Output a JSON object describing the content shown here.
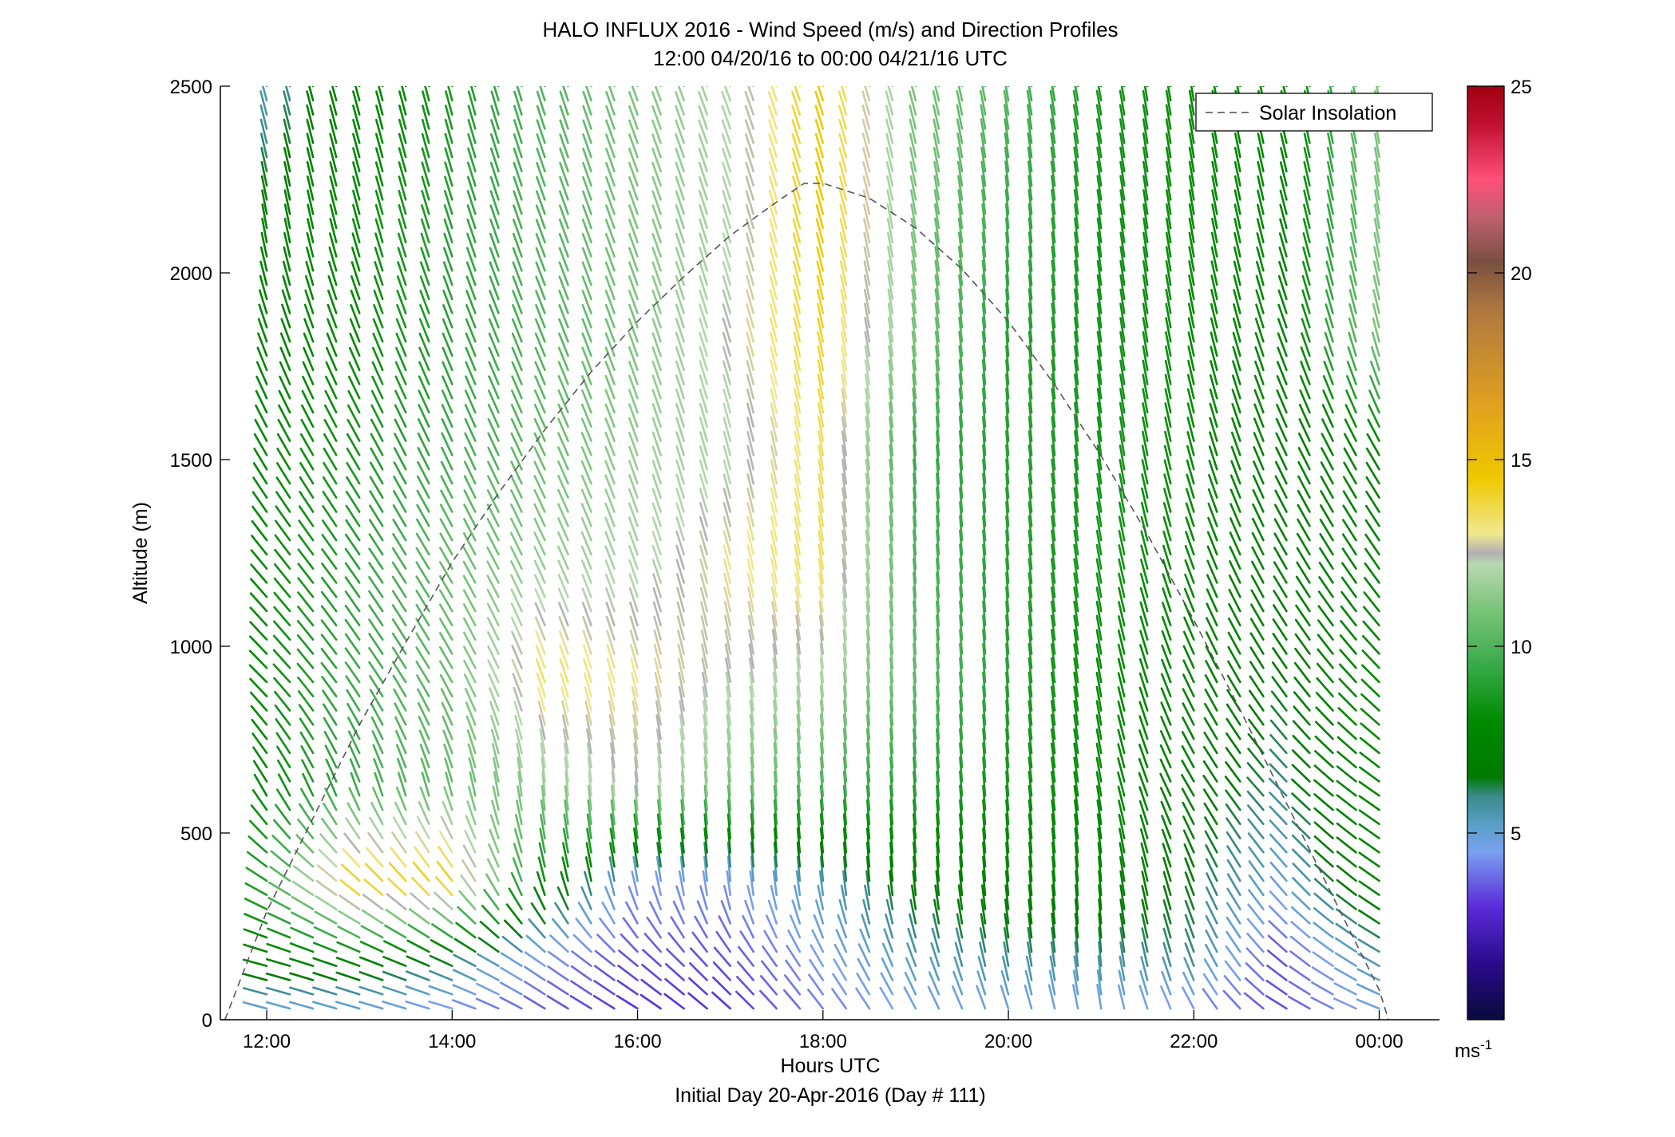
{
  "chart_data": {
    "type": "wind-barb-profile",
    "title": "HALO INFLUX 2016 - Wind Speed (m/s) and Direction Profiles",
    "subtitle": "12:00 04/20/16 to 00:00 04/21/16  UTC",
    "xlabel": "Hours UTC",
    "xlabel2": "Initial Day 20-Apr-2016 (Day # 111)",
    "ylabel": "Altitude (m)",
    "x_unit": "hours UTC since 00:00 04/20/16",
    "xlim": [
      11.5,
      24.65
    ],
    "ylim": [
      0,
      2500
    ],
    "x_ticks": [
      {
        "value": 12,
        "label": "12:00"
      },
      {
        "value": 14,
        "label": "14:00"
      },
      {
        "value": 16,
        "label": "16:00"
      },
      {
        "value": 18,
        "label": "18:00"
      },
      {
        "value": 20,
        "label": "20:00"
      },
      {
        "value": 22,
        "label": "22:00"
      },
      {
        "value": 24,
        "label": "00:00"
      }
    ],
    "y_ticks": [
      0,
      500,
      1000,
      1500,
      2000,
      2500
    ],
    "grid": false,
    "legend": {
      "position": "top-right",
      "entries": [
        {
          "label": "Solar Insolation",
          "style": "dashed",
          "color": "#666666"
        }
      ]
    },
    "colorbar": {
      "label": "ms",
      "label_sup": "-1",
      "range": [
        0,
        25
      ],
      "ticks": [
        5,
        10,
        15,
        20,
        25
      ],
      "stops": [
        {
          "v": 0,
          "c": "#0a0a3c"
        },
        {
          "v": 1.5,
          "c": "#2a0a8c"
        },
        {
          "v": 3,
          "c": "#5a2ad8"
        },
        {
          "v": 4.5,
          "c": "#7aa0f0"
        },
        {
          "v": 5.2,
          "c": "#5aa0c8"
        },
        {
          "v": 6,
          "c": "#3a8a8a"
        },
        {
          "v": 6.5,
          "c": "#007a00"
        },
        {
          "v": 8,
          "c": "#008a00"
        },
        {
          "v": 9.5,
          "c": "#3aaa4a"
        },
        {
          "v": 11,
          "c": "#7ac47a"
        },
        {
          "v": 12.2,
          "c": "#b8d8b0"
        },
        {
          "v": 12.5,
          "c": "#b0b0b0"
        },
        {
          "v": 13,
          "c": "#f0e890"
        },
        {
          "v": 14.5,
          "c": "#f0c800"
        },
        {
          "v": 16.5,
          "c": "#e0a020"
        },
        {
          "v": 19,
          "c": "#b07840"
        },
        {
          "v": 20.3,
          "c": "#7a5040"
        },
        {
          "v": 21.5,
          "c": "#c06070"
        },
        {
          "v": 22.5,
          "c": "#ff507a"
        },
        {
          "v": 24,
          "c": "#c01030"
        },
        {
          "v": 25,
          "c": "#a00010"
        }
      ]
    },
    "solar_insolation": {
      "x": [
        11.55,
        12,
        12.5,
        13,
        13.5,
        14,
        14.5,
        15,
        15.5,
        16,
        16.5,
        17,
        17.5,
        17.8,
        18,
        18.5,
        19,
        19.5,
        20,
        20.5,
        21,
        21.5,
        22,
        22.5,
        23,
        23.5,
        24,
        24.1
      ],
      "y": [
        0,
        290,
        540,
        790,
        1010,
        1225,
        1410,
        1580,
        1735,
        1870,
        1990,
        2100,
        2190,
        2240,
        2240,
        2200,
        2120,
        2010,
        1870,
        1700,
        1510,
        1300,
        1070,
        830,
        580,
        330,
        80,
        0
      ]
    },
    "profile_start": 12,
    "profile_step": 0.25,
    "speed_field": {
      "altitudes": [
        0,
        150,
        350,
        600,
        900,
        1200,
        1500,
        1800,
        2100,
        2450
      ],
      "hours": [
        12,
        13,
        14,
        15,
        16,
        17,
        18,
        19,
        20,
        21,
        22,
        23,
        24
      ],
      "speeds": [
        [
          4.5,
          4.5,
          4.0,
          3.5,
          3.0,
          3.0,
          4.0,
          4.5,
          4.5,
          4.5,
          4.0,
          3.5,
          4.5
        ],
        [
          7.5,
          7.5,
          6.5,
          4.5,
          3.5,
          3.5,
          4.5,
          5.5,
          6.0,
          6.0,
          6.0,
          3.5,
          5.5
        ],
        [
          9.0,
          14.5,
          14.5,
          8.0,
          4.5,
          4.5,
          5.5,
          7.0,
          7.5,
          7.5,
          6.5,
          5.0,
          7.5
        ],
        [
          8.0,
          9.5,
          10.5,
          11.5,
          12.5,
          11.0,
          10.0,
          9.0,
          8.5,
          8.0,
          7.0,
          6.0,
          8.0
        ],
        [
          8.0,
          9.5,
          10.5,
          13.5,
          13.0,
          12.5,
          12.0,
          10.5,
          9.0,
          8.0,
          7.5,
          6.5,
          8.0
        ],
        [
          8.0,
          9.0,
          10.5,
          11.5,
          12.0,
          13.0,
          13.5,
          10.0,
          9.0,
          8.5,
          8.0,
          7.0,
          7.5
        ],
        [
          8.0,
          8.5,
          9.5,
          10.5,
          11.5,
          12.0,
          13.5,
          9.5,
          9.0,
          8.5,
          8.0,
          7.0,
          7.5
        ],
        [
          7.5,
          8.0,
          9.0,
          10.0,
          11.0,
          12.5,
          14.0,
          11.0,
          9.0,
          8.5,
          8.0,
          7.5,
          11.0
        ],
        [
          7.0,
          8.0,
          9.0,
          10.0,
          11.0,
          12.0,
          14.5,
          11.0,
          9.5,
          8.5,
          8.0,
          7.5,
          11.0
        ],
        [
          5.5,
          7.5,
          8.5,
          10.0,
          11.0,
          12.0,
          14.5,
          11.0,
          10.0,
          8.5,
          8.0,
          7.5,
          11.0
        ]
      ]
    },
    "direction_field": {
      "altitudes": [
        0,
        150,
        350,
        600,
        900,
        1200,
        1500,
        1800,
        2100,
        2450
      ],
      "hours": [
        12,
        13,
        14,
        15,
        16,
        17,
        18,
        19,
        20,
        21,
        22,
        23,
        24
      ],
      "direction_deg": [
        [
          285,
          285,
          285,
          300,
          300,
          310,
          320,
          330,
          340,
          350,
          330,
          300,
          290
        ],
        [
          285,
          290,
          295,
          305,
          310,
          320,
          330,
          340,
          350,
          355,
          340,
          310,
          300
        ],
        [
          300,
          310,
          320,
          345,
          350,
          355,
          355,
          355,
          355,
          355,
          340,
          320,
          305
        ],
        [
          330,
          340,
          345,
          355,
          355,
          355,
          355,
          355,
          355,
          350,
          330,
          315,
          305
        ],
        [
          315,
          325,
          330,
          340,
          345,
          350,
          355,
          355,
          355,
          350,
          335,
          325,
          315
        ],
        [
          320,
          325,
          330,
          335,
          340,
          345,
          350,
          355,
          355,
          350,
          340,
          330,
          325
        ],
        [
          330,
          330,
          335,
          335,
          340,
          345,
          350,
          355,
          355,
          352,
          345,
          335,
          330
        ],
        [
          340,
          338,
          338,
          338,
          340,
          343,
          348,
          352,
          355,
          352,
          348,
          340,
          345
        ],
        [
          350,
          345,
          342,
          340,
          340,
          343,
          345,
          350,
          355,
          352,
          350,
          345,
          350
        ],
        [
          345,
          345,
          345,
          342,
          340,
          340,
          342,
          345,
          350,
          350,
          350,
          348,
          350
        ]
      ]
    }
  }
}
